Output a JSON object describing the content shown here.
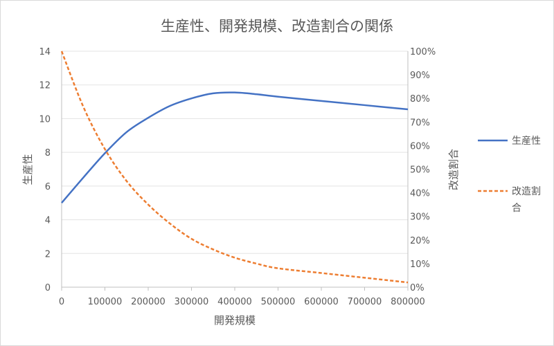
{
  "chart_data": {
    "type": "line",
    "title": "生産性、開発規模、改造割合の関係",
    "xlabel": "開発規模",
    "ylabel_left": "生産性",
    "ylabel_right": "改造割合",
    "xlim": [
      0,
      800000
    ],
    "ylim_left": [
      0,
      14
    ],
    "ylim_right": [
      0,
      1
    ],
    "x_ticks": [
      "0",
      "100000",
      "200000",
      "300000",
      "400000",
      "500000",
      "600000",
      "700000",
      "800000"
    ],
    "y_left_ticks": [
      "0",
      "2",
      "4",
      "6",
      "8",
      "10",
      "12",
      "14"
    ],
    "y_right_ticks": [
      "0%",
      "10%",
      "20%",
      "30%",
      "40%",
      "50%",
      "60%",
      "70%",
      "80%",
      "90%",
      "100%"
    ],
    "legend_position": "right",
    "grid": true,
    "series": [
      {
        "name": "生産性",
        "axis": "left",
        "color": "#4472C4",
        "style": "solid",
        "x": [
          0,
          50000,
          100000,
          150000,
          200000,
          250000,
          300000,
          350000,
          400000,
          450000,
          500000,
          600000,
          700000,
          800000
        ],
        "values": [
          5.0,
          6.5,
          7.95,
          9.2,
          10.05,
          10.75,
          11.2,
          11.5,
          11.55,
          11.45,
          11.3,
          11.05,
          10.8,
          10.55
        ]
      },
      {
        "name": "改造割合",
        "legend_label": "改造割\n合",
        "axis": "right",
        "color": "#ED7D31",
        "style": "dashed",
        "x": [
          0,
          50000,
          100000,
          150000,
          200000,
          250000,
          300000,
          350000,
          400000,
          450000,
          500000,
          600000,
          700000,
          800000
        ],
        "values": [
          1.0,
          0.765,
          0.585,
          0.45,
          0.35,
          0.27,
          0.205,
          0.16,
          0.125,
          0.1,
          0.08,
          0.06,
          0.04,
          0.02
        ]
      }
    ]
  }
}
